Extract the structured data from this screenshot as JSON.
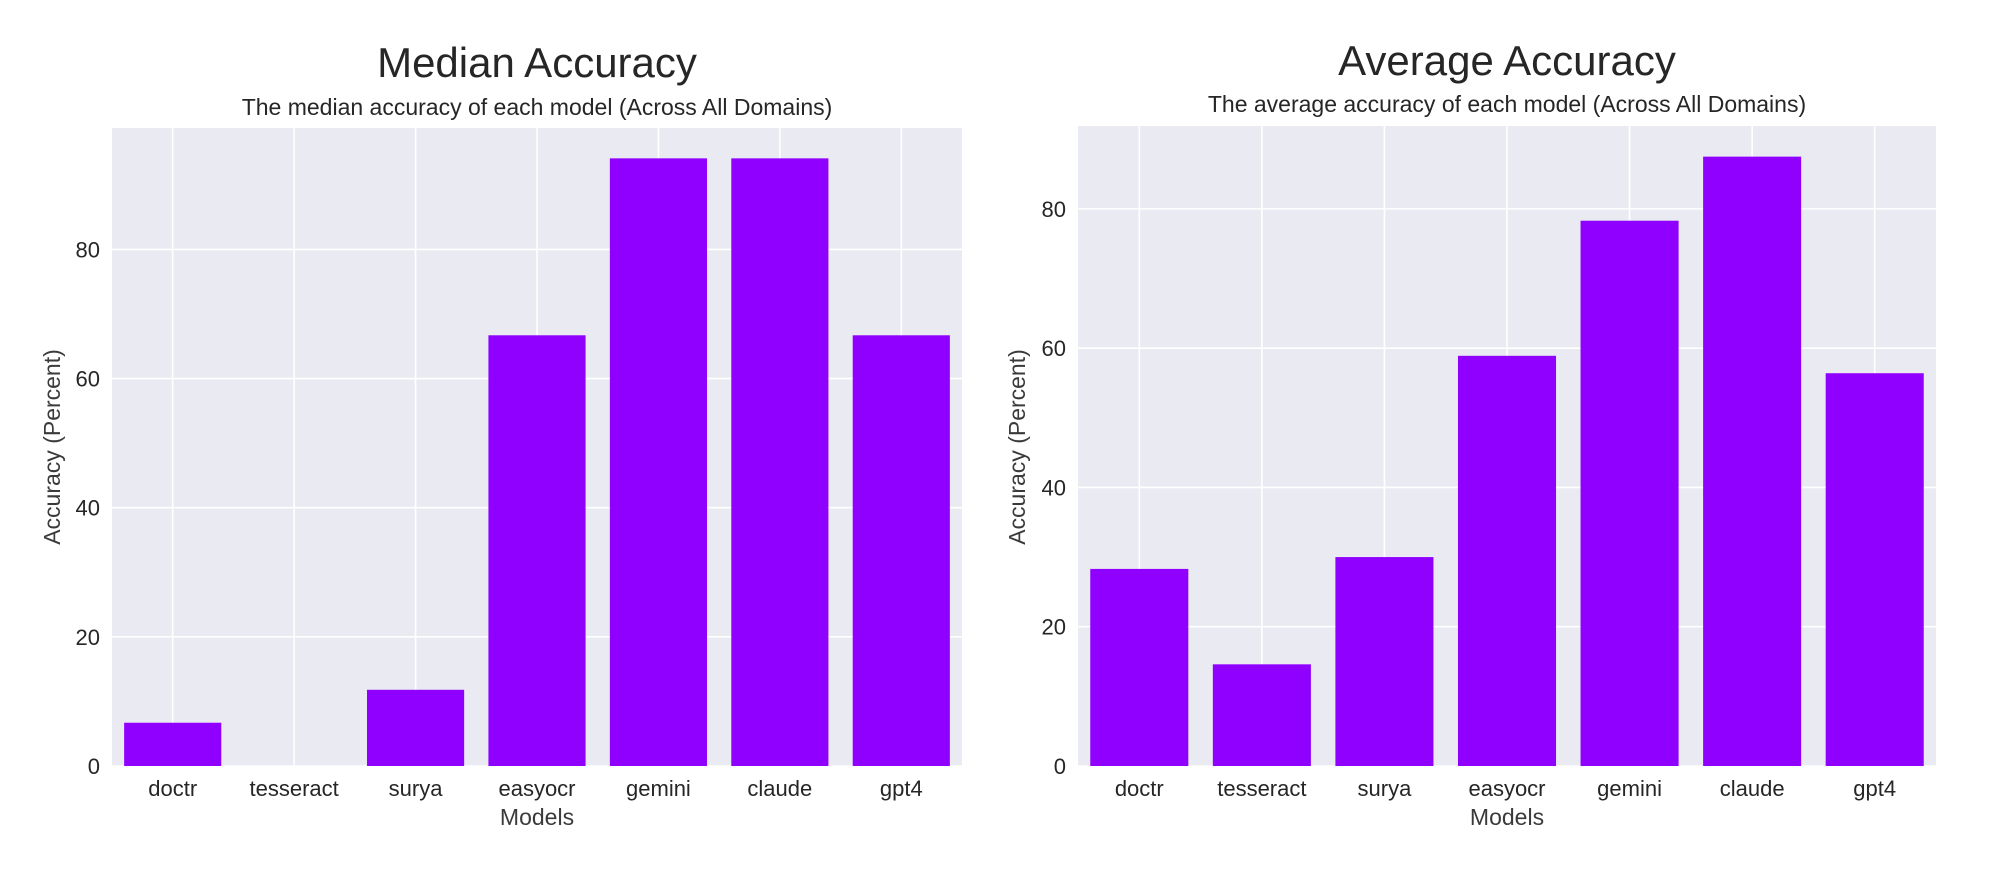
{
  "chart_data": [
    {
      "type": "bar",
      "title": "Median Accuracy",
      "subtitle": "The median accuracy of each model (Across All Domains)",
      "xlabel": "Models",
      "ylabel": "Accuracy (Percent)",
      "categories": [
        "doctr",
        "tesseract",
        "surya",
        "easyocr",
        "gemini",
        "claude",
        "gpt4"
      ],
      "values": [
        6.7,
        0,
        11.8,
        66.7,
        94.1,
        94.1,
        66.7
      ],
      "ylim": [
        0,
        98.8
      ],
      "yticks": [
        0,
        20,
        40,
        60,
        80
      ],
      "grid": true,
      "legend": "none",
      "bar_color": "#8f00ff"
    },
    {
      "type": "bar",
      "title": "Average Accuracy",
      "subtitle": "The average accuracy of each model (Across All Domains)",
      "xlabel": "Models",
      "ylabel": "Accuracy (Percent)",
      "categories": [
        "doctr",
        "tesseract",
        "surya",
        "easyocr",
        "gemini",
        "claude",
        "gpt4"
      ],
      "values": [
        28.3,
        14.6,
        30.0,
        58.9,
        78.3,
        87.5,
        56.4
      ],
      "ylim": [
        0,
        91.9
      ],
      "yticks": [
        0,
        20,
        40,
        60,
        80
      ],
      "grid": true,
      "legend": "none",
      "bar_color": "#8f00ff"
    }
  ]
}
